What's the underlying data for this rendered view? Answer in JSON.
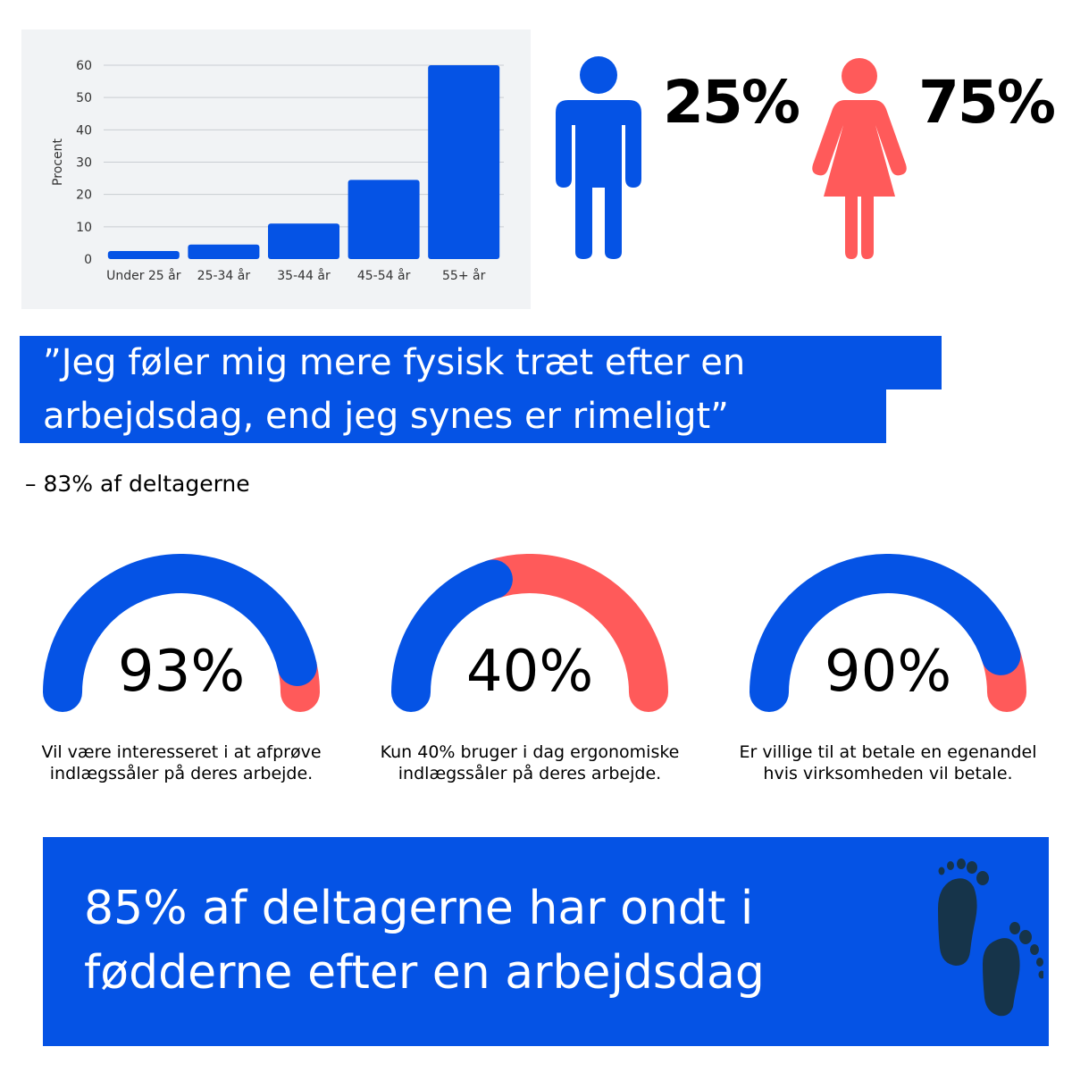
{
  "chart_data": {
    "type": "bar",
    "categories": [
      "Under 25 år",
      "25-34 år",
      "35-44 år",
      "45-54 år",
      "55+ år"
    ],
    "values": [
      2.5,
      4.5,
      11,
      24.5,
      60
    ],
    "ylabel": "Procent",
    "xlabel": "",
    "ylim": [
      0,
      60
    ],
    "yticks": [
      0,
      10,
      20,
      30,
      40,
      50,
      60
    ],
    "grid": true,
    "bar_color": "#0553e5"
  },
  "gender": {
    "male_pct": "25%",
    "female_pct": "75%",
    "male_color": "#0553e5",
    "female_color": "#ff5a5a"
  },
  "quote": {
    "line1": "”Jeg føler mig mere fysisk træt efter en",
    "line2": "arbejdsdag, end jeg synes er rimeligt”",
    "attribution": "– 83% af deltagerne"
  },
  "gauges": [
    {
      "value": 93,
      "label": "93%",
      "caption": "Vil være interesseret i at afprøve indlægssåler på deres arbejde."
    },
    {
      "value": 40,
      "label": "40%",
      "caption": "Kun 40% bruger i dag ergonomiske indlægssåler på deres arbejde."
    },
    {
      "value": 90,
      "label": "90%",
      "caption": "Er villige til at betale en egenandel hvis virksomheden vil betale."
    }
  ],
  "colors": {
    "primary": "#0553e5",
    "accent": "#ff5a5a",
    "footprint": "#16344a"
  },
  "footer": {
    "text": "85% af deltagerne har ondt i fødderne efter en arbejdsdag",
    "icon": "footprints-icon"
  }
}
